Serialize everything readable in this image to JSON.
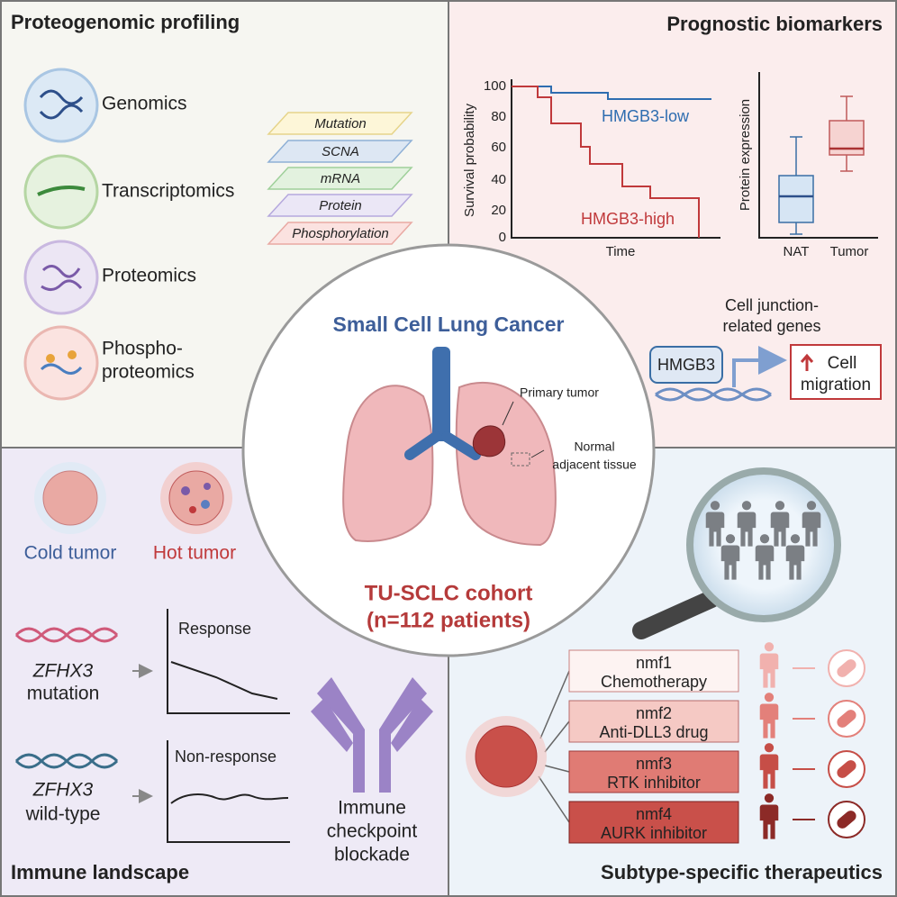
{
  "proteogenomic_profiling": {
    "title": "Proteogenomic profiling",
    "omics": [
      [
        "Genomics"
      ],
      [
        "Transcriptomics"
      ],
      [
        "Proteomics"
      ],
      [
        "Phospho-",
        "proteomics"
      ]
    ],
    "layers": [
      "Mutation",
      "SCNA",
      "mRNA",
      "Protein",
      "Phosphorylation"
    ]
  },
  "prognostic_biomarkers": {
    "title": "Prognostic biomarkers",
    "survival_plot": {
      "y_label": "Survival probability",
      "y_ticks": [
        100,
        80,
        60,
        40,
        20,
        0
      ],
      "x_label": "Time",
      "low_label": "HMGB3-low",
      "high_label": "HMGB3-high"
    },
    "expression_plot": {
      "y_label": "Protein expression",
      "categories": [
        "NAT",
        "Tumor"
      ]
    },
    "gene_set": [
      "Cell junction-",
      "related genes"
    ],
    "gene": "HMGB3",
    "outcome": [
      "Cell",
      "migration"
    ]
  },
  "center": {
    "title": "Small Cell Lung Cancer",
    "primary_tumor": "Primary tumor",
    "normal_tissue": [
      "Normal",
      "adjacent tissue"
    ],
    "cohort": "TU-SCLC cohort",
    "patients": "(n=112 patients)"
  },
  "immune_landscape": {
    "title": "Immune landscape",
    "cold": "Cold tumor",
    "hot": "Hot tumor",
    "mutation": [
      "ZFHX3",
      "mutation"
    ],
    "wild_type": [
      "ZFHX3",
      "wild-type"
    ],
    "response": "Response",
    "non_response": "Non-response",
    "therapy": [
      "Immune",
      "checkpoint",
      "blockade"
    ]
  },
  "subtype_therapeutics": {
    "title": "Subtype-specific therapeutics",
    "subtypes": [
      {
        "name": "nmf1",
        "therapy": "Chemotherapy"
      },
      {
        "name": "nmf2",
        "therapy": "Anti-DLL3 drug"
      },
      {
        "name": "nmf3",
        "therapy": "RTK inhibitor"
      },
      {
        "name": "nmf4",
        "therapy": "AURK inhibitor"
      }
    ]
  }
}
